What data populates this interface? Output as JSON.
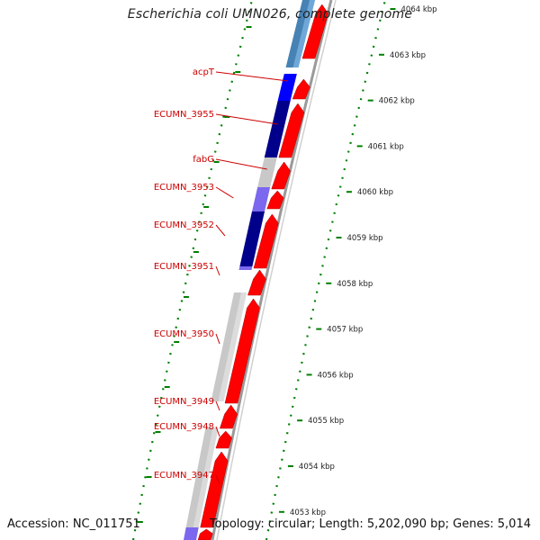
{
  "title": "Escherichia coli UMN026, complete genome",
  "footer": {
    "accession": "Accession: NC_011751",
    "summary": "Topology: circular; Length: 5,202,090 bp; Genes: 5,014"
  },
  "scale": {
    "ticks": [
      "4064 kbp",
      "4063 kbp",
      "4062 kbp",
      "4061 kbp",
      "4060 kbp",
      "4059 kbp",
      "4058 kbp",
      "4057 kbp",
      "4056 kbp",
      "4055 kbp",
      "4054 kbp",
      "4053 kbp"
    ]
  },
  "gene_labels": [
    "acpT",
    "ECUMN_3955",
    "fabG",
    "ECUMN_3953",
    "ECUMN_3952",
    "ECUMN_3951",
    "ECUMN_3950",
    "ECUMN_3949",
    "ECUMN_3948",
    "ECUMN_3947"
  ],
  "colors": {
    "cds_forward": "#ff0000",
    "feature_blue": "#0000ff",
    "feature_navy": "#00008b",
    "feature_purple": "#7b68ee",
    "feature_steel": "#4682b4",
    "feature_gray": "#c8c8c8",
    "tick_green": "#008000",
    "label_red": "#cc0000"
  }
}
